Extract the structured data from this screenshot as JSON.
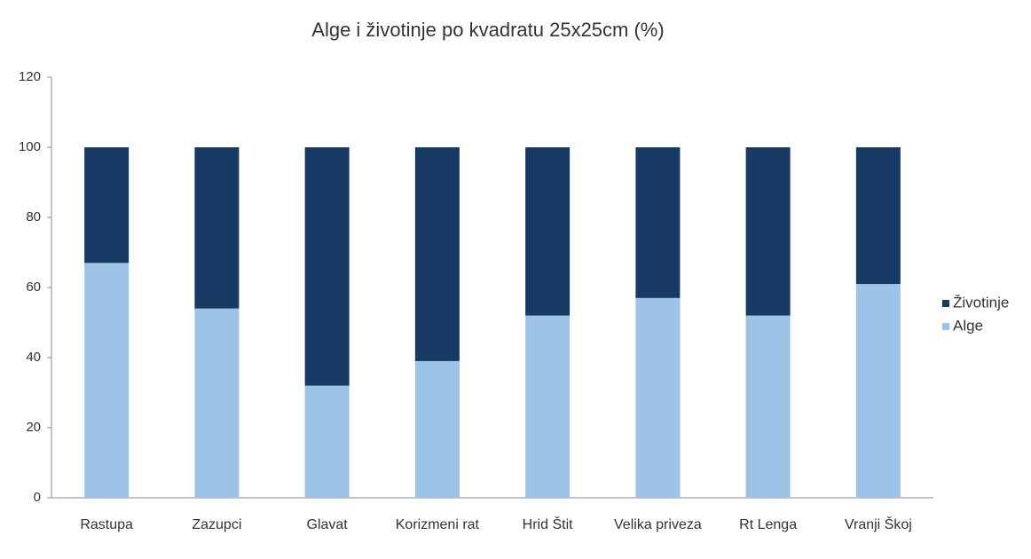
{
  "chart_data": {
    "type": "stacked_bar",
    "title": "Alge i životinje po kvadratu 25x25cm (%)",
    "categories": [
      "Rastupa",
      "Zazupci",
      "Glavat",
      "Korizmeni rat",
      "Hrid Štit",
      "Velika priveza",
      "Rt Lenga",
      "Vranji Škoj"
    ],
    "series": [
      {
        "name": "Alge",
        "color": "#9dc3e6",
        "values": [
          67,
          54,
          32,
          39,
          52,
          57,
          52,
          61
        ]
      },
      {
        "name": "Životinje",
        "color": "#173a64",
        "values": [
          33,
          46,
          68,
          61,
          48,
          43,
          48,
          39
        ]
      }
    ],
    "ylim": [
      0,
      120
    ],
    "yticks": [
      0,
      20,
      40,
      60,
      80,
      100,
      120
    ],
    "grid": false,
    "legend": "right"
  }
}
